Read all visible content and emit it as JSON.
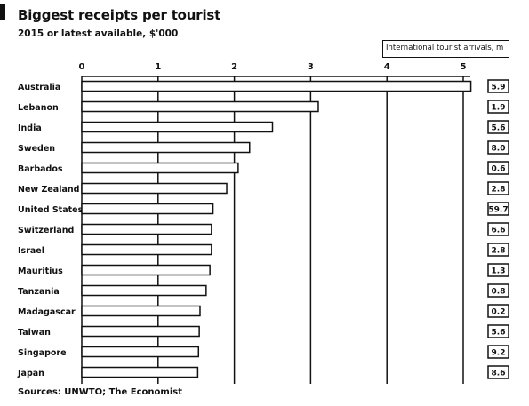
{
  "title": "Biggest receipts per tourist",
  "subtitle": "2015 or latest available, $'000",
  "source": "Sources: UNWTO; The Economist",
  "chart_data": {
    "type": "bar",
    "orientation": "horizontal",
    "title": "Biggest receipts per tourist",
    "subtitle": "2015 or latest available, $'000",
    "xlim": [
      0,
      5
    ],
    "xticks": [
      "0",
      "1",
      "2",
      "3",
      "4",
      "5"
    ],
    "grid": true,
    "legend": {
      "label": "International tourist arrivals, m",
      "placement": "top-right"
    },
    "categories": [
      "Australia",
      "Lebanon",
      "India",
      "Sweden",
      "Barbados",
      "New Zealand",
      "United States",
      "Switzerland",
      "Israel",
      "Mauritius",
      "Tanzania",
      "Madagascar",
      "Taiwan",
      "Singapore",
      "Japan"
    ],
    "series": [
      {
        "values": [
          5.1,
          3.1,
          2.5,
          2.2,
          2.05,
          1.9,
          1.72,
          1.7,
          1.7,
          1.68,
          1.63,
          1.55,
          1.54,
          1.53,
          1.52
        ]
      }
    ],
    "arrivals": [
      "5.9",
      "1.9",
      "5.6",
      "8.0",
      "0.6",
      "2.8",
      "59.7",
      "6.6",
      "2.8",
      "1.3",
      "0.8",
      "0.2",
      "5.6",
      "9.2",
      "8.6"
    ]
  }
}
